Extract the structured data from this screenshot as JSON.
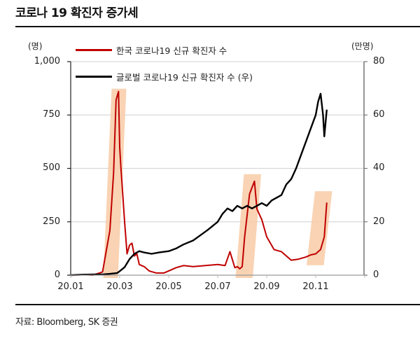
{
  "title": "코로나 19 확진자 증가세",
  "source": "자료: Bloomberg, SK 증권",
  "chart_data": {
    "type": "line",
    "title": "코로나 19 확진자 증가세",
    "xlabel": "",
    "ylabel_left": "(명)",
    "ylabel_right": "(만명)",
    "x_ticks": [
      "20.01",
      "20.03",
      "20.05",
      "20.07",
      "20.09",
      "20.11"
    ],
    "y_left_ticks": [
      "0",
      "250",
      "500",
      "750",
      "1,000"
    ],
    "y_right_ticks": [
      "0",
      "20",
      "40",
      "60",
      "80"
    ],
    "ylim_left": [
      0,
      1000
    ],
    "ylim_right": [
      0,
      80
    ],
    "grid": "horizontal",
    "legend_position": "top-inside",
    "series": [
      {
        "name": "한국 코로나19 신규 확진자 수",
        "axis": "left",
        "color": "#c00000",
        "x_month": [
          1.0,
          1.6,
          1.9,
          2.3,
          2.6,
          2.75,
          2.85,
          2.95,
          3.0,
          3.05,
          3.1,
          3.2,
          3.3,
          3.4,
          3.5,
          3.6,
          3.7,
          3.8,
          4.0,
          4.2,
          4.5,
          4.8,
          5.0,
          5.3,
          5.6,
          6.0,
          6.5,
          7.0,
          7.3,
          7.5,
          7.7,
          7.8,
          7.9,
          8.0,
          8.1,
          8.2,
          8.3,
          8.4,
          8.5,
          8.6,
          8.8,
          9.0,
          9.3,
          9.6,
          10.0,
          10.3,
          10.6,
          10.8,
          11.0,
          11.2,
          11.35,
          11.45
        ],
        "values": [
          0,
          2,
          0,
          15,
          210,
          480,
          820,
          860,
          600,
          500,
          420,
          250,
          100,
          140,
          150,
          90,
          100,
          50,
          40,
          20,
          10,
          10,
          20,
          35,
          45,
          40,
          45,
          50,
          45,
          110,
          35,
          40,
          30,
          40,
          180,
          280,
          380,
          410,
          440,
          310,
          260,
          180,
          120,
          110,
          70,
          75,
          85,
          95,
          100,
          120,
          180,
          340
        ]
      },
      {
        "name": "글로벌 코로나19 신규 확진자 수 (우)",
        "axis": "right",
        "color": "#000000",
        "x_month": [
          1.0,
          1.5,
          2.0,
          2.3,
          2.6,
          2.9,
          3.0,
          3.2,
          3.4,
          3.6,
          3.8,
          4.0,
          4.3,
          4.6,
          5.0,
          5.3,
          5.6,
          6.0,
          6.3,
          6.6,
          7.0,
          7.2,
          7.4,
          7.6,
          7.8,
          8.0,
          8.2,
          8.4,
          8.6,
          8.8,
          9.0,
          9.2,
          9.4,
          9.6,
          9.8,
          10.0,
          10.2,
          10.4,
          10.6,
          10.8,
          11.0,
          11.1,
          11.2,
          11.3,
          11.35,
          11.45
        ],
        "values": [
          0,
          0.2,
          0.3,
          0.3,
          0.5,
          0.8,
          1.5,
          3,
          6,
          8,
          9,
          8.5,
          8,
          8.5,
          9,
          10,
          11.5,
          13,
          15,
          17,
          20,
          23,
          25,
          24,
          26,
          25,
          26,
          25,
          26,
          27,
          26,
          28,
          29,
          30,
          34,
          36,
          40,
          45,
          50,
          55,
          60,
          65,
          68,
          60,
          52,
          62
        ]
      }
    ],
    "annotations": [
      {
        "type": "highlight-box",
        "color": "#f8cba6",
        "x_month_range": [
          2.5,
          3.1
        ],
        "y_range_left": [
          0,
          860
        ]
      },
      {
        "type": "highlight-box",
        "color": "#f8cba6",
        "x_month_range": [
          7.9,
          8.6
        ],
        "y_range_left": [
          0,
          460
        ]
      },
      {
        "type": "highlight-box",
        "color": "#f8cba6",
        "x_month_range": [
          10.8,
          11.5
        ],
        "y_range_left": [
          60,
          380
        ]
      }
    ]
  }
}
